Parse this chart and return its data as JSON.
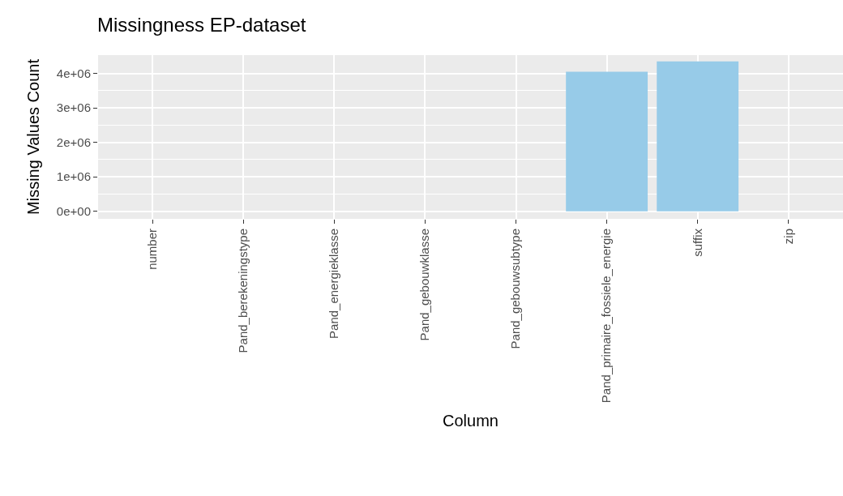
{
  "chart_data": {
    "type": "bar",
    "title": "Missingness EP-dataset",
    "xlabel": "Column",
    "ylabel": "Missing Values Count",
    "categories": [
      "number",
      "Pand_berekeningstype",
      "Pand_energieklasse",
      "Pand_gebouwklasse",
      "Pand_gebouwsubtype",
      "Pand_primaire_fossiele_energie",
      "suffix",
      "zip"
    ],
    "values": [
      0,
      0,
      0,
      0,
      0,
      4050000,
      4350000,
      0
    ],
    "color": "#97cbe8",
    "ylim": [
      -220000,
      4530000
    ],
    "yticks": [
      {
        "value": 0,
        "label": "0e+00"
      },
      {
        "value": 1000000,
        "label": "1e+06"
      },
      {
        "value": 2000000,
        "label": "2e+06"
      },
      {
        "value": 3000000,
        "label": "3e+06"
      },
      {
        "value": 4000000,
        "label": "4e+06"
      }
    ],
    "grid": true
  }
}
